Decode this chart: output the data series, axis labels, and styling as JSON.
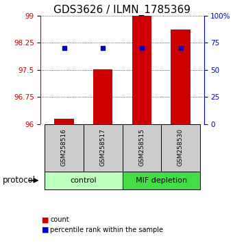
{
  "title": "GDS3626 / ILMN_1785369",
  "samples": [
    "GSM258516",
    "GSM258517",
    "GSM258515",
    "GSM258530"
  ],
  "count_values": [
    96.15,
    97.52,
    99.0,
    98.62
  ],
  "percentile_pct": [
    70,
    70,
    70,
    70
  ],
  "ylim_left": [
    96,
    99
  ],
  "ylim_right": [
    0,
    100
  ],
  "yticks_left": [
    96,
    96.75,
    97.5,
    98.25,
    99
  ],
  "ytick_labels_left": [
    "96",
    "96.75",
    "97.5",
    "98.25",
    "99"
  ],
  "yticks_right": [
    0,
    25,
    50,
    75,
    100
  ],
  "ytick_labels_right": [
    "0",
    "25",
    "50",
    "75",
    "100%"
  ],
  "bar_color": "#cc0000",
  "dot_color": "#0000cc",
  "bar_width": 0.5,
  "groups": [
    {
      "label": "control",
      "samples": [
        0,
        1
      ],
      "color": "#bbffbb"
    },
    {
      "label": "MIF depletion",
      "samples": [
        2,
        3
      ],
      "color": "#44dd44"
    }
  ],
  "protocol_label": "protocol",
  "legend_items": [
    {
      "color": "#cc0000",
      "label": "count"
    },
    {
      "color": "#0000cc",
      "label": "percentile rank within the sample"
    }
  ],
  "title_fontsize": 11,
  "axis_color_left": "#cc0000",
  "axis_color_right": "#0000bb",
  "background_color": "#ffffff",
  "sample_box_color": "#cccccc"
}
